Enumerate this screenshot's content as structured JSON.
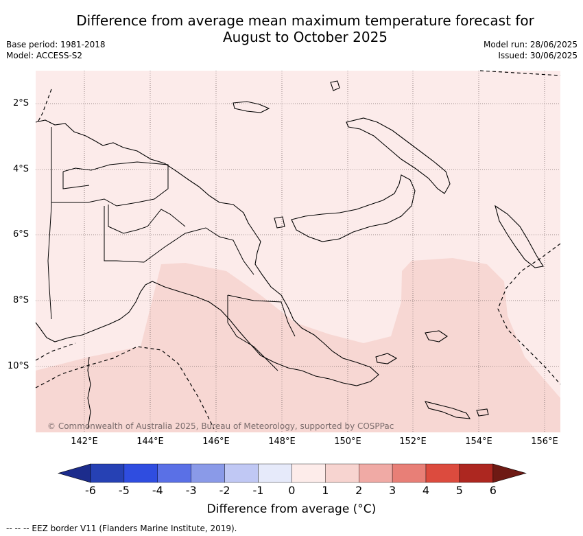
{
  "title_line1": "Difference from average mean maximum temperature forecast for",
  "title_line2": "August to October 2025",
  "base_period": "Base period: 1981-2018",
  "model": "Model: ACCESS-S2",
  "model_run": "Model run: 28/06/2025",
  "issued": "Issued: 30/06/2025",
  "latitude_labels": [
    "2°S",
    "4°S",
    "6°S",
    "8°S",
    "10°S"
  ],
  "longitude_labels": [
    "142°E",
    "144°E",
    "146°E",
    "148°E",
    "150°E",
    "152°E",
    "154°E",
    "156°E"
  ],
  "copyright": "© Commonwealth of Australia 2025, Bureau of Meteorology, supported by COSPPac",
  "colorbar": {
    "ticks": [
      "-6",
      "-5",
      "-4",
      "-3",
      "-2",
      "-1",
      "0",
      "1",
      "2",
      "3",
      "4",
      "5",
      "6"
    ],
    "colors": [
      "#1c2c8c",
      "#2641b4",
      "#2f4de0",
      "#5a70e6",
      "#8a9ae8",
      "#c0c8f4",
      "#e6eafa",
      "#fdecea",
      "#f7d4d0",
      "#f0aaa5",
      "#e87f77",
      "#dc4b3e",
      "#ad2720",
      "#6e1a14"
    ],
    "title": "Difference from average (°C)"
  },
  "footer": "-- -- -- EEZ border V11 (Flanders Marine Institute, 2019).",
  "colors": {
    "anomaly_0_to_1": "#fcebea",
    "anomaly_1_to_2": "#f7d7d3"
  }
}
